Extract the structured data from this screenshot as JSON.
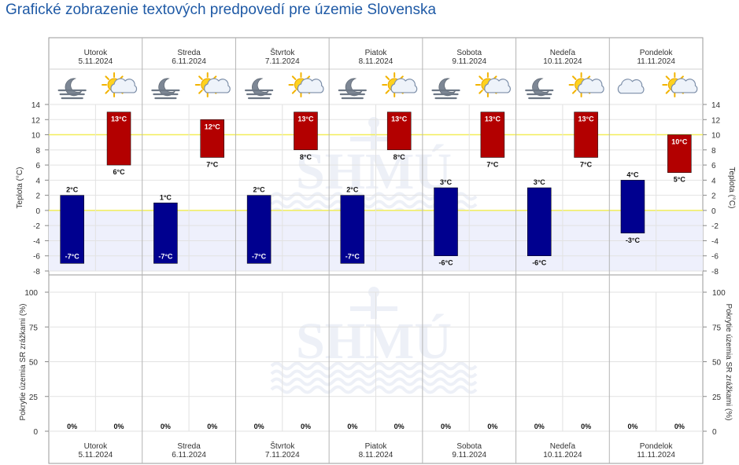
{
  "title": "Grafické zobrazenie textových predpovedí pre územie Slovenska",
  "days": [
    {
      "name": "Utorok",
      "date": "5.11.2024",
      "icons": [
        "night-moon-fog-icon",
        "sun-cloud-icon"
      ]
    },
    {
      "name": "Streda",
      "date": "6.11.2024",
      "icons": [
        "night-moon-fog-icon",
        "sun-cloud-icon"
      ]
    },
    {
      "name": "Štvrtok",
      "date": "7.11.2024",
      "icons": [
        "night-moon-fog-icon",
        "sun-cloud-icon"
      ]
    },
    {
      "name": "Piatok",
      "date": "8.11.2024",
      "icons": [
        "night-moon-fog-icon",
        "sun-cloud-icon"
      ]
    },
    {
      "name": "Sobota",
      "date": "9.11.2024",
      "icons": [
        "night-moon-fog-icon",
        "sun-cloud-icon"
      ]
    },
    {
      "name": "Nedeľa",
      "date": "10.11.2024",
      "icons": [
        "night-moon-fog-icon",
        "sun-cloud-icon"
      ]
    },
    {
      "name": "Pondelok",
      "date": "11.11.2024",
      "icons": [
        "cloud-icon",
        "sun-cloud-icon"
      ]
    }
  ],
  "chart_data": [
    {
      "type": "bar",
      "ylabel": "Teplota (°C)",
      "ylabel_right": "Teplota (°C)",
      "ylim": [
        -8,
        14
      ],
      "yticks": [
        -8,
        -6,
        -4,
        -2,
        0,
        2,
        4,
        6,
        8,
        10,
        12,
        14
      ],
      "unit": "°C",
      "reference_lines": [
        0,
        10
      ],
      "categories": [
        "5.11.2024",
        "6.11.2024",
        "7.11.2024",
        "8.11.2024",
        "9.11.2024",
        "10.11.2024",
        "11.11.2024"
      ],
      "series": [
        {
          "name": "noc",
          "color": "#00008f",
          "min": [
            -7,
            -7,
            -7,
            -7,
            -6,
            -6,
            -3
          ],
          "max": [
            2,
            1,
            2,
            2,
            3,
            3,
            4
          ]
        },
        {
          "name": "deň",
          "color": "#b30000",
          "min": [
            6,
            7,
            8,
            8,
            7,
            7,
            5
          ],
          "max": [
            13,
            12,
            13,
            13,
            13,
            13,
            10
          ]
        }
      ]
    },
    {
      "type": "bar",
      "ylabel": "Pokrytie územia SR zrážkami (%)",
      "ylabel_right": "Pokrytie územia SR zrážkami (%)",
      "ylim": [
        0,
        100
      ],
      "yticks": [
        0,
        25,
        50,
        75,
        100
      ],
      "unit": "%",
      "categories": [
        "5.11.2024",
        "6.11.2024",
        "7.11.2024",
        "8.11.2024",
        "9.11.2024",
        "10.11.2024",
        "11.11.2024"
      ],
      "series": [
        {
          "name": "noc",
          "values": [
            0,
            0,
            0,
            0,
            0,
            0,
            0
          ]
        },
        {
          "name": "deň",
          "values": [
            0,
            0,
            0,
            0,
            0,
            0,
            0
          ]
        }
      ]
    }
  ],
  "watermark": "SHMÚ",
  "colors": {
    "title": "#1f5aa6",
    "night_bar": "#00008f",
    "day_bar": "#b30000",
    "subzero_band": "#eef0fc",
    "ref_line": "#f2ee5a",
    "grid": "#e2e2e2",
    "day_divider": "#b4b4b4"
  }
}
